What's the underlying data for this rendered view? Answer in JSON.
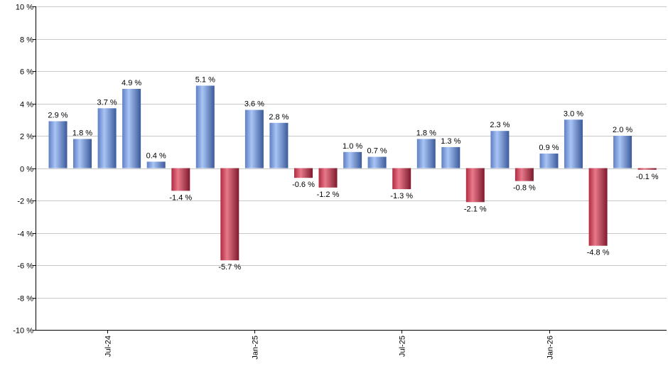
{
  "chart_data": {
    "type": "bar",
    "unit_suffix": " %",
    "ylim": [
      -10,
      10
    ],
    "y_ticks": [
      10,
      8,
      6,
      4,
      2,
      0,
      -2,
      -4,
      -6,
      -8,
      -10
    ],
    "y_tick_labels": [
      "10 %",
      "8 %",
      "6 %",
      "4 %",
      "2 %",
      "0 %",
      "-2 %",
      "-4 %",
      "-6 %",
      "-8 %",
      "-10 %"
    ],
    "x_tick_labels": [
      {
        "label": "Jul-24",
        "index": 2
      },
      {
        "label": "Jan-25",
        "index": 8
      },
      {
        "label": "Jul-25",
        "index": 14
      },
      {
        "label": "Jan-26",
        "index": 20
      }
    ],
    "values": [
      2.9,
      1.8,
      3.7,
      4.9,
      0.4,
      -1.4,
      5.1,
      -5.7,
      3.6,
      2.8,
      -0.6,
      -1.2,
      1.0,
      0.7,
      -1.3,
      1.8,
      1.3,
      -2.1,
      2.3,
      -0.8,
      0.9,
      3.0,
      -4.8,
      2.0,
      -0.1
    ],
    "labels": [
      "2.9 %",
      "1.8 %",
      "3.7 %",
      "4.9 %",
      "0.4 %",
      "-1.4 %",
      "5.1 %",
      "-5.7 %",
      "3.6 %",
      "2.8 %",
      "-0.6 %",
      "-1.2 %",
      "1.0 %",
      "0.7 %",
      "-1.3 %",
      "1.8 %",
      "1.3 %",
      "-2.1 %",
      "2.3 %",
      "-0.8 %",
      "0.9 %",
      "3.0 %",
      "-4.8 %",
      "2.0 %",
      "-0.1 %"
    ],
    "colors": {
      "positive_light": "#a9c4f5",
      "positive_mid": "#7b9ee0",
      "positive_dark": "#3b5a9a",
      "negative_light": "#e07a8a",
      "negative_mid": "#c9304a",
      "negative_dark": "#7d1a2c",
      "grid": "#c8c8c8"
    },
    "grid": true,
    "title": "",
    "xlabel": "",
    "ylabel": ""
  }
}
